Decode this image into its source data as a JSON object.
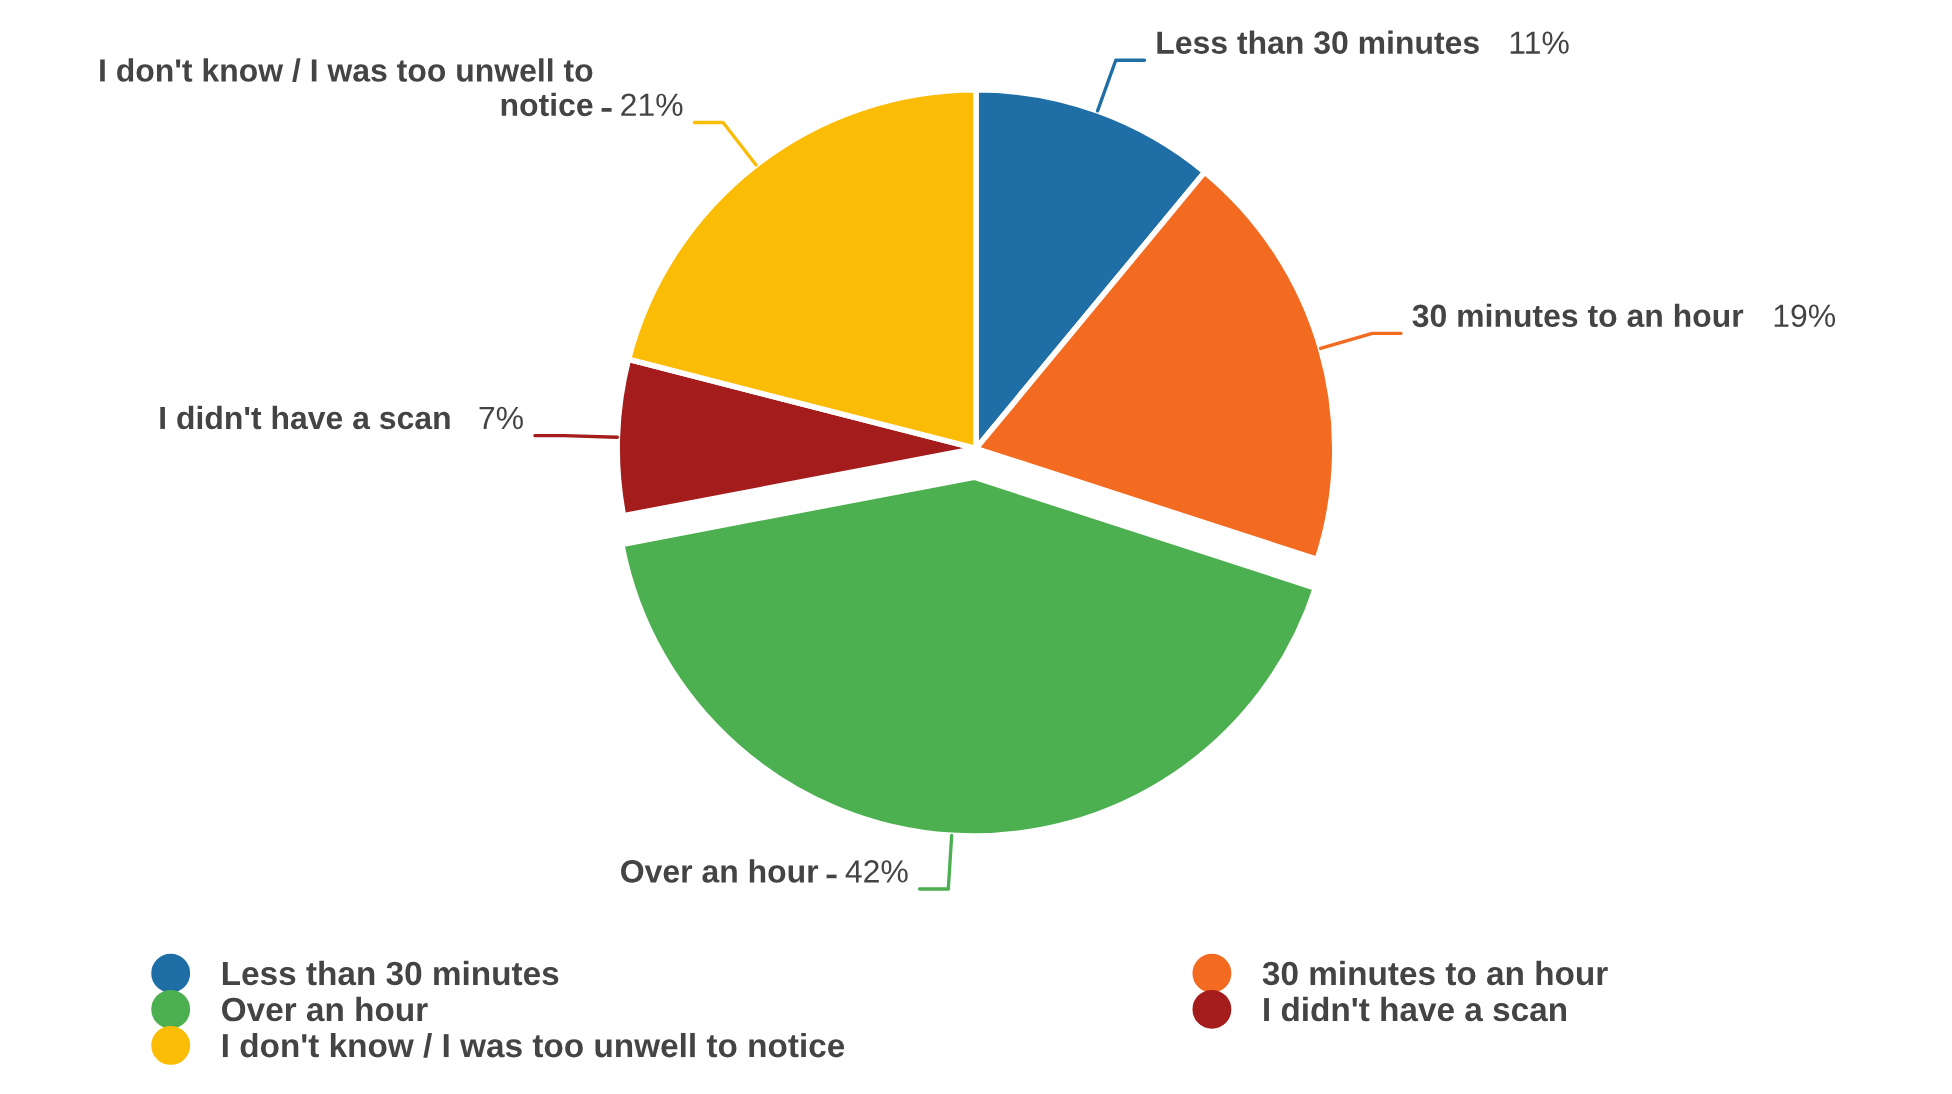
{
  "chart_data": {
    "type": "pie",
    "categories": [
      "Less than 30 minutes",
      "30 minutes to an hour",
      "Over an hour",
      "I didn't have a scan",
      "I don't know / I was too unwell to notice"
    ],
    "values": [
      11,
      19,
      42,
      7,
      21
    ],
    "colors": [
      "#1f6fa6",
      "#f26b21",
      "#4caf50",
      "#a51c1c",
      "#fbbc05"
    ],
    "value_labels": [
      "11%",
      "19%",
      "42%",
      "7%",
      "21%"
    ],
    "legend": "bottom"
  }
}
